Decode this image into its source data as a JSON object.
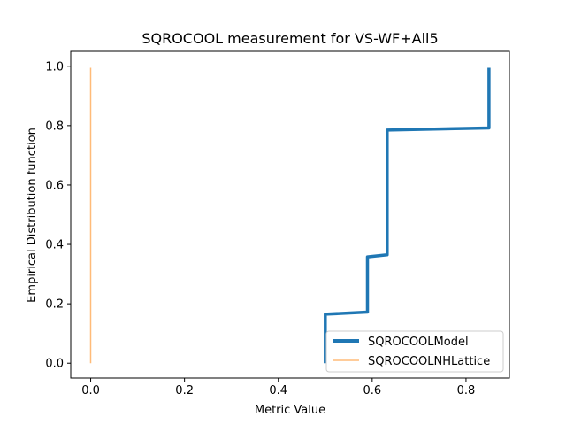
{
  "chart_data": {
    "type": "line",
    "title": "SQROCOOL measurement for VS-WF+All5",
    "xlabel": "Metric Value",
    "ylabel": "Empirical Distribution function",
    "xlim": [
      -0.0425,
      0.8925
    ],
    "ylim": [
      -0.05,
      1.05
    ],
    "xticks": [
      0.0,
      0.2,
      0.4,
      0.6,
      0.8
    ],
    "xtick_labels": [
      "0.0",
      "0.2",
      "0.4",
      "0.6",
      "0.8"
    ],
    "yticks": [
      0.0,
      0.2,
      0.4,
      0.6,
      0.8,
      1.0
    ],
    "ytick_labels": [
      "0.0",
      "0.2",
      "0.4",
      "0.6",
      "0.8",
      "1.0"
    ],
    "grid": false,
    "legend_position": "lower-right",
    "series": [
      {
        "name": "SQROCOOLModel",
        "color": "#1f77b4",
        "x": [
          0.5,
          0.5,
          0.59,
          0.59,
          0.632,
          0.632,
          0.849,
          0.849
        ],
        "y": [
          0.0,
          0.165,
          0.172,
          0.358,
          0.365,
          0.785,
          0.792,
          0.995
        ]
      },
      {
        "name": "SQROCOOLNHLattice",
        "color": "#ffbb78",
        "x": [
          0.0,
          0.0
        ],
        "y": [
          0.0,
          0.995
        ]
      }
    ]
  }
}
